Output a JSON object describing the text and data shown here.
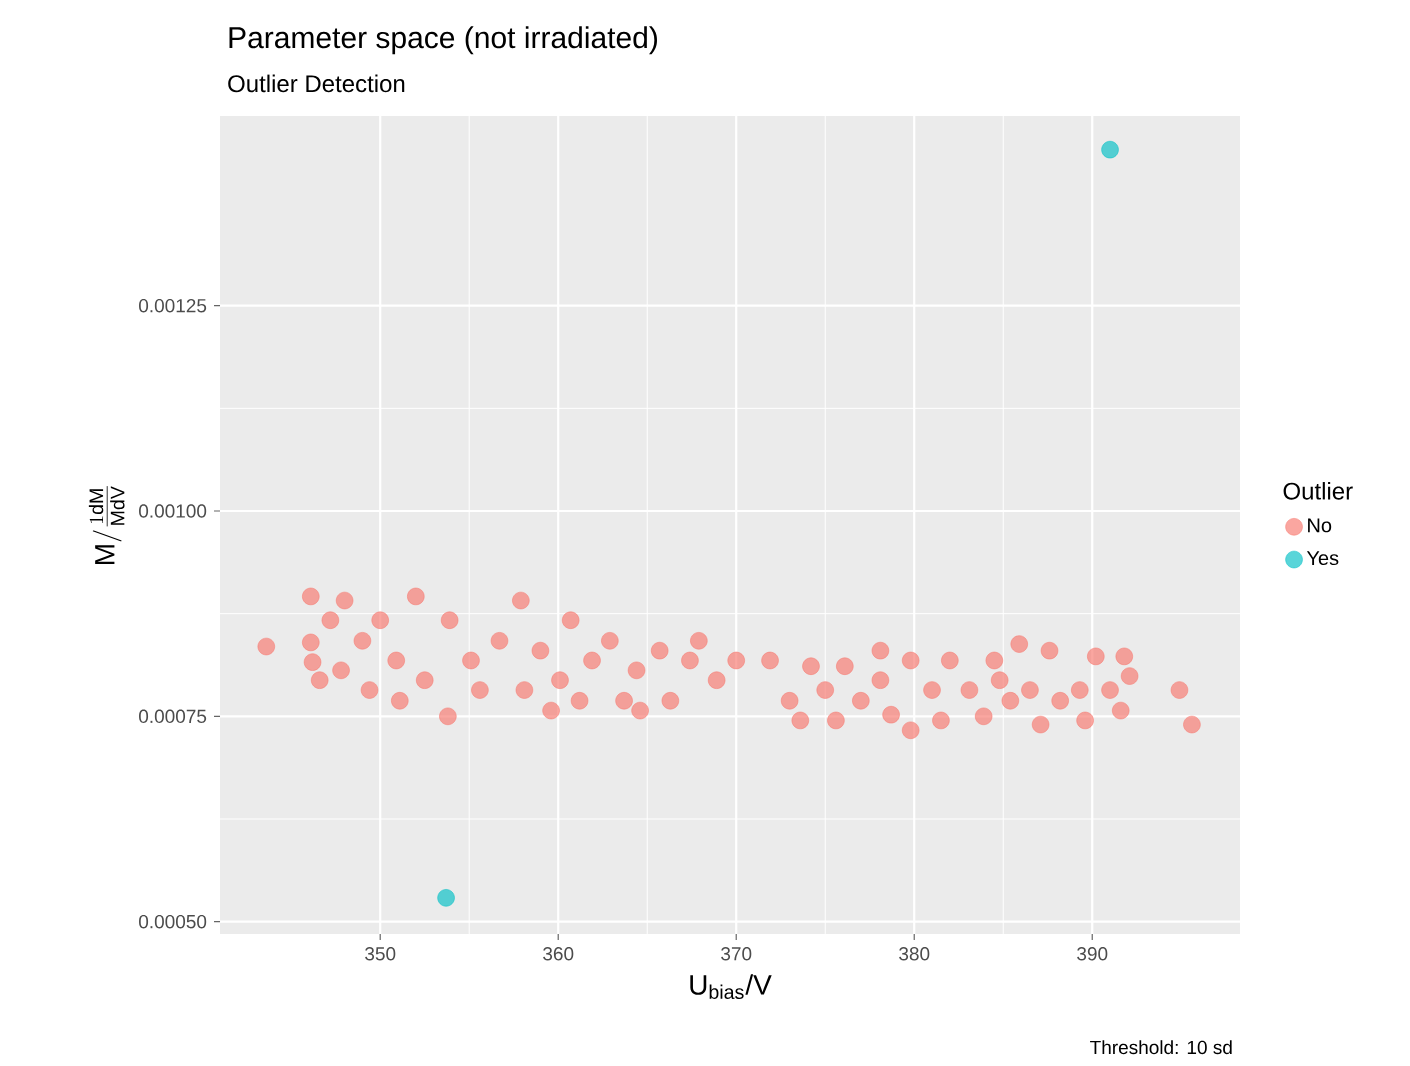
{
  "chart_data": {
    "type": "scatter",
    "title": "Parameter space (not irradiated)",
    "subtitle": "Outlier Detection",
    "xlabel": "U$_{bias}$/V",
    "ylabel": "\\mathrm{M}/\\frac{1\\mathrm{dM}}{\\mathrm{MdV}}",
    "legend_title": "Outlier",
    "annotations": [
      "Threshold: 10 sd"
    ],
    "series": [
      {
        "name": "No",
        "color": "#f8766d",
        "x": [
          343.6,
          346.1,
          346.1,
          346.2,
          346.6,
          347.2,
          347.8,
          348.0,
          349.0,
          349.4,
          350.0,
          350.9,
          352.0,
          352.5,
          353.8,
          353.9,
          355.1,
          355.6,
          356.7,
          357.9,
          358.1,
          359.0,
          360.1,
          360.7,
          361.2,
          361.9,
          362.9,
          363.7,
          364.4,
          365.7,
          366.3,
          367.4,
          367.9,
          368.9,
          370.0,
          371.9,
          373.0,
          373.6,
          374.2,
          375.0,
          375.6,
          376.1,
          377.0,
          378.1,
          378.7,
          379.8,
          379.8,
          381.0,
          381.5,
          382.0,
          383.1,
          383.9,
          384.5,
          385.4,
          385.9,
          386.5,
          387.1,
          387.6,
          388.2,
          389.3,
          389.6,
          390.2,
          391.0,
          391.6,
          391.8,
          392.1,
          394.9,
          395.6,
          351.1,
          359.6,
          364.6,
          378.1,
          384.8
        ],
        "values": [
          0.000835,
          0.00084,
          0.000896,
          0.000816,
          0.000794,
          0.000867,
          0.000806,
          0.000891,
          0.000842,
          0.000782,
          0.000867,
          0.000818,
          0.000896,
          0.000794,
          0.00075,
          0.000867,
          0.000818,
          0.000782,
          0.000842,
          0.000891,
          0.000782,
          0.00083,
          0.000794,
          0.000867,
          0.000769,
          0.000818,
          0.000842,
          0.000769,
          0.000806,
          0.00083,
          0.000769,
          0.000818,
          0.000842,
          0.000794,
          0.000818,
          0.000818,
          0.000769,
          0.000745,
          0.000811,
          0.000782,
          0.000745,
          0.000811,
          0.000769,
          0.000794,
          0.000752,
          0.000818,
          0.000733,
          0.000782,
          0.000745,
          0.000818,
          0.000782,
          0.00075,
          0.000818,
          0.000769,
          0.000838,
          0.000782,
          0.00074,
          0.00083,
          0.000769,
          0.000782,
          0.000745,
          0.000823,
          0.000782,
          0.000757,
          0.000823,
          0.000799,
          0.000782,
          0.00074,
          0.000769,
          0.000757,
          0.000757,
          0.00083,
          0.000794
        ]
      },
      {
        "name": "Yes",
        "color": "#00bfc4",
        "x": [
          391.0,
          353.7
        ],
        "values": [
          0.00144,
          0.000529
        ]
      }
    ],
    "xlim": [
      341.0,
      398.3
    ],
    "ylim": [
      0.000485,
      0.001481
    ],
    "xticks": [
      350,
      360,
      370,
      380,
      390
    ],
    "yticks": [
      {
        "value": 0.0005,
        "label": "0.00050"
      },
      {
        "value": 0.00075,
        "label": "0.00075"
      },
      {
        "value": 0.001,
        "label": "0.00100"
      },
      {
        "value": 0.00125,
        "label": "0.00125"
      }
    ],
    "grid": true,
    "legend": "right",
    "marker": "circle"
  }
}
